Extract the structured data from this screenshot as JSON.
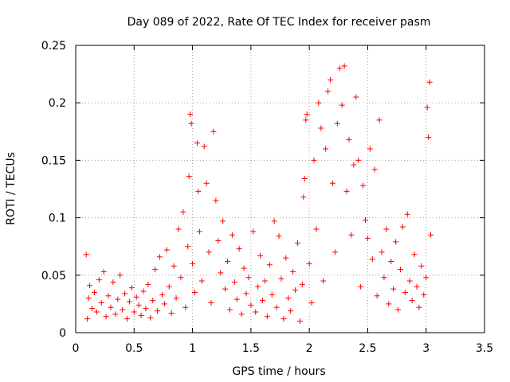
{
  "chart_data": {
    "type": "scatter",
    "title": "Day 089 of 2022, Rate Of TEC Index for receiver pasm",
    "xlabel": "GPS time / hours",
    "ylabel": "ROTI / TECUs",
    "xlim": [
      0,
      3.5
    ],
    "ylim": [
      0,
      0.25
    ],
    "x_ticks": [
      0,
      0.5,
      1,
      1.5,
      2,
      2.5,
      3,
      3.5
    ],
    "x_tick_labels": [
      "0",
      "0.5",
      "1",
      "1.5",
      "2",
      "2.5",
      "3",
      "3.5"
    ],
    "y_ticks": [
      0,
      0.05,
      0.1,
      0.15,
      0.2,
      0.25
    ],
    "y_tick_labels": [
      "0",
      "0.05",
      "0.1",
      "0.15",
      "0.2",
      "0.25"
    ],
    "grid": true,
    "legend": "none",
    "marker": "plus",
    "series": [
      {
        "color": "#ff0000",
        "points": [
          [
            0.09,
            0.068
          ],
          [
            0.1,
            0.012
          ],
          [
            0.11,
            0.03
          ],
          [
            0.12,
            0.041
          ],
          [
            0.14,
            0.021
          ],
          [
            0.16,
            0.035
          ],
          [
            0.18,
            0.018
          ],
          [
            0.2,
            0.046
          ],
          [
            0.22,
            0.026
          ],
          [
            0.24,
            0.053
          ],
          [
            0.26,
            0.014
          ],
          [
            0.28,
            0.032
          ],
          [
            0.3,
            0.022
          ],
          [
            0.32,
            0.044
          ],
          [
            0.34,
            0.016
          ],
          [
            0.36,
            0.029
          ],
          [
            0.38,
            0.05
          ],
          [
            0.4,
            0.02
          ],
          [
            0.42,
            0.034
          ],
          [
            0.44,
            0.012
          ],
          [
            0.46,
            0.027
          ],
          [
            0.48,
            0.039
          ],
          [
            0.5,
            0.018
          ],
          [
            0.52,
            0.031
          ],
          [
            0.54,
            0.024
          ],
          [
            0.56,
            0.015
          ],
          [
            0.58,
            0.036
          ],
          [
            0.6,
            0.021
          ],
          [
            0.62,
            0.042
          ],
          [
            0.64,
            0.013
          ],
          [
            0.66,
            0.028
          ],
          [
            0.68,
            0.055
          ],
          [
            0.7,
            0.019
          ],
          [
            0.72,
            0.066
          ],
          [
            0.74,
            0.033
          ],
          [
            0.76,
            0.025
          ],
          [
            0.78,
            0.072
          ],
          [
            0.8,
            0.04
          ],
          [
            0.82,
            0.017
          ],
          [
            0.84,
            0.058
          ],
          [
            0.86,
            0.03
          ],
          [
            0.88,
            0.09
          ],
          [
            0.9,
            0.048
          ],
          [
            0.92,
            0.105
          ],
          [
            0.94,
            0.022
          ],
          [
            0.96,
            0.075
          ],
          [
            0.97,
            0.136
          ],
          [
            0.98,
            0.19
          ],
          [
            0.99,
            0.182
          ],
          [
            1.0,
            0.06
          ],
          [
            1.02,
            0.035
          ],
          [
            1.04,
            0.165
          ],
          [
            1.05,
            0.123
          ],
          [
            1.06,
            0.088
          ],
          [
            1.08,
            0.045
          ],
          [
            1.1,
            0.162
          ],
          [
            1.12,
            0.13
          ],
          [
            1.14,
            0.07
          ],
          [
            1.16,
            0.026
          ],
          [
            1.18,
            0.175
          ],
          [
            1.2,
            0.115
          ],
          [
            1.22,
            0.08
          ],
          [
            1.24,
            0.052
          ],
          [
            1.26,
            0.097
          ],
          [
            1.28,
            0.038
          ],
          [
            1.3,
            0.062
          ],
          [
            1.32,
            0.02
          ],
          [
            1.34,
            0.085
          ],
          [
            1.36,
            0.044
          ],
          [
            1.38,
            0.029
          ],
          [
            1.4,
            0.073
          ],
          [
            1.42,
            0.016
          ],
          [
            1.44,
            0.056
          ],
          [
            1.46,
            0.034
          ],
          [
            1.48,
            0.048
          ],
          [
            1.5,
            0.024
          ],
          [
            1.52,
            0.088
          ],
          [
            1.54,
            0.018
          ],
          [
            1.56,
            0.04
          ],
          [
            1.58,
            0.067
          ],
          [
            1.6,
            0.028
          ],
          [
            1.62,
            0.045
          ],
          [
            1.64,
            0.014
          ],
          [
            1.66,
            0.059
          ],
          [
            1.68,
            0.033
          ],
          [
            1.7,
            0.097
          ],
          [
            1.72,
            0.022
          ],
          [
            1.74,
            0.084
          ],
          [
            1.76,
            0.047
          ],
          [
            1.78,
            0.012
          ],
          [
            1.8,
            0.065
          ],
          [
            1.82,
            0.03
          ],
          [
            1.84,
            0.019
          ],
          [
            1.86,
            0.053
          ],
          [
            1.88,
            0.037
          ],
          [
            1.9,
            0.078
          ],
          [
            1.92,
            0.01
          ],
          [
            1.94,
            0.042
          ],
          [
            1.95,
            0.118
          ],
          [
            1.96,
            0.134
          ],
          [
            1.97,
            0.185
          ],
          [
            1.98,
            0.19
          ],
          [
            2.0,
            0.06
          ],
          [
            2.02,
            0.026
          ],
          [
            2.04,
            0.15
          ],
          [
            2.06,
            0.09
          ],
          [
            2.08,
            0.2
          ],
          [
            2.1,
            0.178
          ],
          [
            2.12,
            0.045
          ],
          [
            2.14,
            0.16
          ],
          [
            2.16,
            0.21
          ],
          [
            2.18,
            0.22
          ],
          [
            2.2,
            0.13
          ],
          [
            2.22,
            0.07
          ],
          [
            2.24,
            0.182
          ],
          [
            2.26,
            0.23
          ],
          [
            2.28,
            0.198
          ],
          [
            2.3,
            0.232
          ],
          [
            2.32,
            0.123
          ],
          [
            2.34,
            0.168
          ],
          [
            2.36,
            0.085
          ],
          [
            2.38,
            0.146
          ],
          [
            2.4,
            0.205
          ],
          [
            2.42,
            0.15
          ],
          [
            2.44,
            0.04
          ],
          [
            2.46,
            0.128
          ],
          [
            2.48,
            0.098
          ],
          [
            2.5,
            0.082
          ],
          [
            2.52,
            0.16
          ],
          [
            2.54,
            0.064
          ],
          [
            2.56,
            0.142
          ],
          [
            2.58,
            0.032
          ],
          [
            2.6,
            0.185
          ],
          [
            2.62,
            0.07
          ],
          [
            2.64,
            0.048
          ],
          [
            2.66,
            0.09
          ],
          [
            2.68,
            0.025
          ],
          [
            2.7,
            0.062
          ],
          [
            2.72,
            0.038
          ],
          [
            2.74,
            0.079
          ],
          [
            2.76,
            0.02
          ],
          [
            2.78,
            0.055
          ],
          [
            2.8,
            0.092
          ],
          [
            2.82,
            0.035
          ],
          [
            2.84,
            0.103
          ],
          [
            2.86,
            0.045
          ],
          [
            2.88,
            0.028
          ],
          [
            2.9,
            0.068
          ],
          [
            2.92,
            0.04
          ],
          [
            2.94,
            0.022
          ],
          [
            2.96,
            0.058
          ],
          [
            2.98,
            0.033
          ],
          [
            3.0,
            0.048
          ],
          [
            3.01,
            0.196
          ],
          [
            3.02,
            0.17
          ],
          [
            3.03,
            0.218
          ],
          [
            3.04,
            0.085
          ]
        ]
      }
    ]
  }
}
